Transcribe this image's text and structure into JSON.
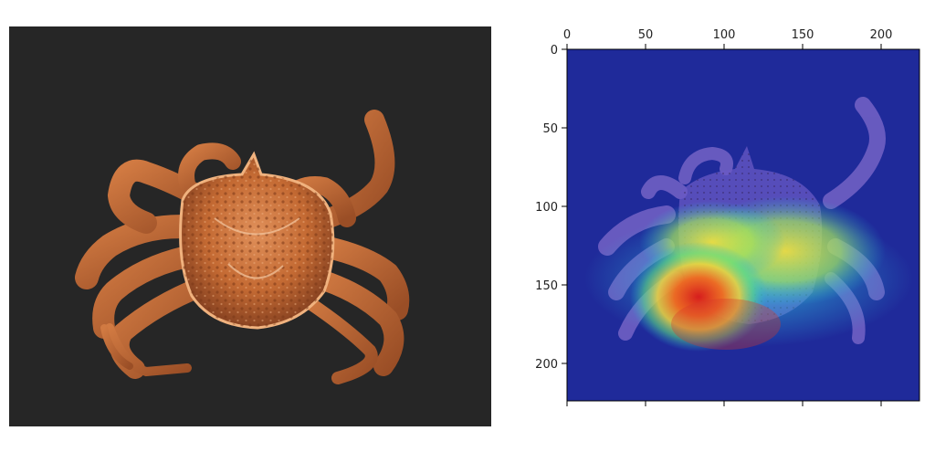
{
  "left_image": {
    "subject": "crab-photo",
    "background_color": "#262626",
    "crab_color": "#c46a33"
  },
  "right_image": {
    "subject": "crab-heatmap-overlay",
    "colormap": "jet",
    "x_axis": {
      "position": "top",
      "range": [
        0,
        224
      ],
      "ticks": [
        "0",
        "50",
        "100",
        "150",
        "200"
      ]
    },
    "y_axis": {
      "range": [
        0,
        224
      ],
      "ticks": [
        "0",
        "50",
        "100",
        "150",
        "200"
      ]
    },
    "hot_region_color": "#e4251f",
    "cold_region_color": "#1f2a9a"
  }
}
